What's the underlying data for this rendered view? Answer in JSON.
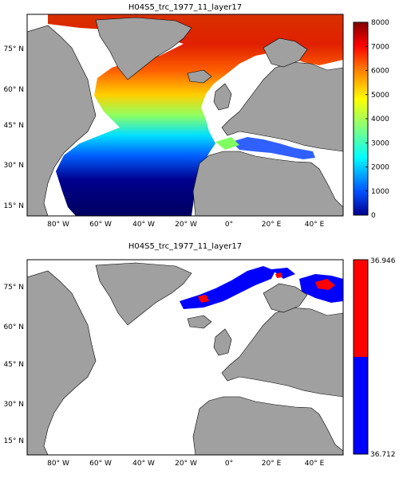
{
  "figure": {
    "maps": [
      {
        "title": "H04S5_trc_1977_11_layer17",
        "lon_ticks": [
          "80° W",
          "60° W",
          "40° W",
          "20° W",
          "0°",
          "20° E",
          "40° E"
        ],
        "lat_ticks": [
          "75° N",
          "60° N",
          "45° N",
          "30° N",
          "15° N"
        ],
        "colorbar": {
          "type": "continuous",
          "ticks": [
            "0",
            "1000",
            "2000",
            "3000",
            "4000",
            "5000",
            "6000",
            "7000",
            "8000"
          ],
          "min": 0,
          "max": 8000
        },
        "colormap": [
          "#00008f",
          "#0050ff",
          "#00ffff",
          "#80ff80",
          "#ffff00",
          "#ff8000",
          "#ff0000",
          "#800000"
        ]
      },
      {
        "title": "H04S5_trc_1977_11_layer17",
        "lon_ticks": [
          "80° W",
          "60° W",
          "40° W",
          "20° W",
          "0°",
          "20° E",
          "40° E"
        ],
        "lat_ticks": [
          "75° N",
          "60° N",
          "45° N",
          "30° N",
          "15° N"
        ],
        "colorbar": {
          "type": "two-level",
          "top_label": "36.946",
          "bottom_label": "36.712",
          "colors": [
            "#ff0000",
            "#0000ff"
          ]
        }
      }
    ],
    "land_color": "#a0a0a0",
    "ocean_nodata_color": "#ffffff"
  }
}
